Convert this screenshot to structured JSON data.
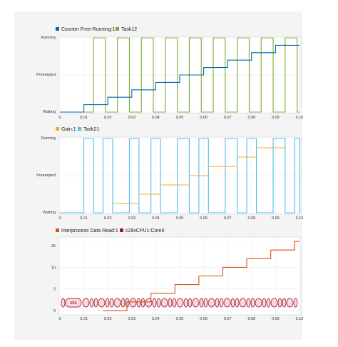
{
  "chart_data": [
    {
      "type": "line",
      "title": "",
      "xlabel": "",
      "ylabel": "",
      "xlim": [
        0,
        0.1
      ],
      "x_ticks": [
        "0",
        "0.01",
        "0.02",
        "0.03",
        "0.04",
        "0.05",
        "0.06",
        "0.07",
        "0.08",
        "0.09",
        "0.10"
      ],
      "y_categories": [
        "Waiting",
        "Preempted",
        "Running"
      ],
      "legend_position": "top-left",
      "series": [
        {
          "name": "Counter Free-Running:1",
          "color": "#0a64ad",
          "style": "step",
          "values_y_fraction": [
            [
              0,
              0
            ],
            [
              0.01,
              0
            ],
            [
              0.01,
              0.1
            ],
            [
              0.02,
              0.1
            ],
            [
              0.02,
              0.2
            ],
            [
              0.03,
              0.2
            ],
            [
              0.03,
              0.3
            ],
            [
              0.04,
              0.3
            ],
            [
              0.04,
              0.4
            ],
            [
              0.05,
              0.4
            ],
            [
              0.05,
              0.5
            ],
            [
              0.06,
              0.5
            ],
            [
              0.06,
              0.6
            ],
            [
              0.07,
              0.6
            ],
            [
              0.07,
              0.7
            ],
            [
              0.08,
              0.7
            ],
            [
              0.08,
              0.8
            ],
            [
              0.09,
              0.8
            ],
            [
              0.09,
              0.9
            ],
            [
              0.1,
              0.9
            ]
          ]
        },
        {
          "name": "Task12",
          "color": "#77ac30",
          "style": "state",
          "running_intervals": [
            [
              0.014,
              0.019
            ],
            [
              0.024,
              0.029
            ],
            [
              0.034,
              0.039
            ],
            [
              0.044,
              0.049
            ],
            [
              0.054,
              0.059
            ],
            [
              0.064,
              0.069
            ],
            [
              0.074,
              0.079
            ],
            [
              0.084,
              0.089
            ],
            [
              0.094,
              0.099
            ]
          ]
        }
      ]
    },
    {
      "type": "line",
      "title": "",
      "xlabel": "",
      "ylabel": "",
      "xlim": [
        0,
        0.1
      ],
      "x_ticks": [
        "0",
        "0.01",
        "0.02",
        "0.03",
        "0.04",
        "0.05",
        "0.06",
        "0.07",
        "0.08",
        "0.09",
        "0.10"
      ],
      "y_categories": [
        "Waiting",
        "Preempted",
        "Running"
      ],
      "legend_position": "top-left",
      "series": [
        {
          "name": "Gain:1",
          "color": "#edb120",
          "style": "segments",
          "segments_y_fraction": [
            [
              0.022,
              0.033,
              0.25
            ],
            [
              0.033,
              0.042,
              0.5
            ],
            [
              0.042,
              0.054,
              0.75
            ],
            [
              0.054,
              0.062,
              1.0
            ],
            [
              0.062,
              0.074,
              1.25
            ],
            [
              0.074,
              0.082,
              1.5
            ],
            [
              0.082,
              0.094,
              1.75
            ]
          ]
        },
        {
          "name": "Task21",
          "color": "#4dbeee",
          "style": "state",
          "running_intervals": [
            [
              0.01,
              0.014
            ],
            [
              0.018,
              0.022
            ],
            [
              0.029,
              0.033
            ],
            [
              0.038,
              0.042
            ],
            [
              0.049,
              0.054
            ],
            [
              0.058,
              0.062
            ],
            [
              0.069,
              0.074
            ],
            [
              0.078,
              0.082
            ],
            [
              0.089,
              0.094
            ],
            [
              0.098,
              0.1
            ]
          ]
        }
      ]
    },
    {
      "type": "line",
      "title": "",
      "xlabel": "",
      "ylabel": "",
      "xlim": [
        0,
        0.1
      ],
      "ylim": [
        -1,
        17
      ],
      "x_ticks": [
        "0",
        "0.01",
        "0.02",
        "0.03",
        "0.04",
        "0.05",
        "0.06",
        "0.07",
        "0.08",
        "0.09",
        "0.10"
      ],
      "y_ticks": [
        "0",
        "5",
        "10",
        "15"
      ],
      "legend_position": "top-left",
      "series": [
        {
          "name": "Interprocess Data Read:1",
          "color": "#d95319",
          "style": "step",
          "x": [
            0.018,
            0.028,
            0.028,
            0.038,
            0.038,
            0.048,
            0.048,
            0.058,
            0.058,
            0.068,
            0.068,
            0.078,
            0.078,
            0.088,
            0.088,
            0.098,
            0.098,
            0.1
          ],
          "y": [
            0,
            0,
            2,
            2,
            4,
            4,
            6,
            6,
            8,
            8,
            10,
            10,
            12,
            12,
            14,
            14,
            16,
            16
          ]
        },
        {
          "name": "c28xCPU1:Core0",
          "color": "#a2142f",
          "style": "state-band",
          "band_y": 1.8,
          "label": "Idle"
        }
      ]
    }
  ]
}
